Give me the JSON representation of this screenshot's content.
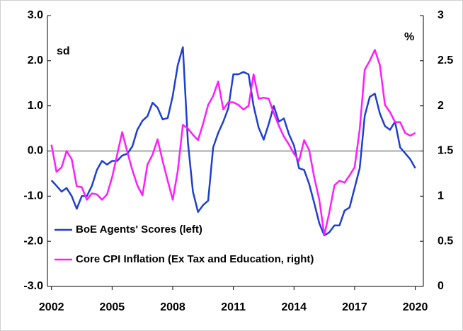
{
  "chart_data": {
    "type": "line",
    "annotations": [
      "sd",
      "%"
    ],
    "x": [
      2002,
      2002.25,
      2002.5,
      2002.75,
      2003,
      2003.25,
      2003.5,
      2003.75,
      2004,
      2004.25,
      2004.5,
      2004.75,
      2005,
      2005.25,
      2005.5,
      2005.75,
      2006,
      2006.25,
      2006.5,
      2006.75,
      2007,
      2007.25,
      2007.5,
      2007.75,
      2008,
      2008.25,
      2008.5,
      2008.75,
      2009,
      2009.25,
      2009.5,
      2009.75,
      2010,
      2010.25,
      2010.5,
      2010.75,
      2011,
      2011.25,
      2011.5,
      2011.75,
      2012,
      2012.25,
      2012.5,
      2012.75,
      2013,
      2013.25,
      2013.5,
      2013.75,
      2014,
      2014.25,
      2014.5,
      2014.75,
      2015,
      2015.25,
      2015.5,
      2015.75,
      2016,
      2016.25,
      2016.5,
      2016.75,
      2017,
      2017.25,
      2017.5,
      2017.75,
      2018,
      2018.25,
      2018.5,
      2018.75,
      2019,
      2019.25,
      2019.5,
      2019.75,
      2020
    ],
    "series": [
      {
        "name": "BoE Agents' Scores (left)",
        "color": "#1f3fcf",
        "axis": "y",
        "values": [
          -0.65,
          -0.77,
          -0.9,
          -0.82,
          -1.0,
          -1.28,
          -1.0,
          -1.0,
          -0.77,
          -0.42,
          -0.22,
          -0.3,
          -0.22,
          -0.22,
          -0.1,
          -0.06,
          0.1,
          0.47,
          0.67,
          0.77,
          1.07,
          0.96,
          0.7,
          0.73,
          1.22,
          1.9,
          2.3,
          0.2,
          -0.9,
          -1.35,
          -1.2,
          -1.1,
          0.08,
          0.4,
          0.65,
          0.95,
          1.7,
          1.7,
          1.75,
          1.7,
          1.0,
          0.52,
          0.25,
          0.6,
          1.0,
          0.65,
          0.72,
          0.37,
          0.12,
          -0.38,
          -0.42,
          -0.73,
          -1.15,
          -1.6,
          -1.87,
          -1.8,
          -1.65,
          -1.65,
          -1.32,
          -1.25,
          -0.82,
          -0.38,
          0.78,
          1.2,
          1.27,
          0.83,
          0.55,
          0.47,
          0.65,
          0.08,
          -0.05,
          -0.18,
          -0.38
        ]
      },
      {
        "name": "Core CPI Inflation (Ex Tax and Education, right)",
        "color": "#ff1cff",
        "axis": "y2",
        "values": [
          1.57,
          1.27,
          1.32,
          1.5,
          1.41,
          1.11,
          1.1,
          0.96,
          1.03,
          1.02,
          0.96,
          1.02,
          1.21,
          1.46,
          1.71,
          1.49,
          1.29,
          1.12,
          1.01,
          1.35,
          1.46,
          1.63,
          1.39,
          1.17,
          0.96,
          1.28,
          1.79,
          1.75,
          1.68,
          1.62,
          1.8,
          2.01,
          2.11,
          2.27,
          1.96,
          2.04,
          2.04,
          2.01,
          1.96,
          2.0,
          2.35,
          2.08,
          2.09,
          2.08,
          1.92,
          1.78,
          1.66,
          1.57,
          1.47,
          1.39,
          1.62,
          1.51,
          1.21,
          0.96,
          0.57,
          0.82,
          1.12,
          1.17,
          1.15,
          1.23,
          1.32,
          1.74,
          2.4,
          2.5,
          2.62,
          2.45,
          2.01,
          1.93,
          1.82,
          1.82,
          1.7,
          1.67,
          1.7
        ]
      }
    ],
    "xlim": [
      2001.8,
      2020.4
    ],
    "xticks": [
      2002,
      2005,
      2008,
      2011,
      2014,
      2017,
      2020
    ],
    "ylim": [
      -3,
      3
    ],
    "yticks": [
      {
        "value": 3,
        "label": "3.0"
      },
      {
        "value": 2,
        "label": "2.0"
      },
      {
        "value": 1,
        "label": "1.0"
      },
      {
        "value": 0,
        "label": "0.0"
      },
      {
        "value": -1,
        "label": "-1.0"
      },
      {
        "value": -2,
        "label": "-2.0"
      },
      {
        "value": -3,
        "label": "-3.0"
      }
    ],
    "y2lim": [
      0,
      3
    ],
    "y2ticks": [
      3,
      2.5,
      2,
      1.5,
      1,
      0.5,
      0
    ],
    "legend": "lower left"
  }
}
